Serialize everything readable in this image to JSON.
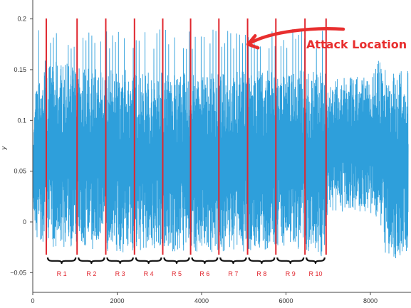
{
  "chart_data": {
    "type": "line",
    "xlabel": "",
    "ylabel": "y",
    "xlim": [
      0,
      8900
    ],
    "ylim": [
      -0.06,
      0.22
    ],
    "x_ticks": [
      0,
      2000,
      4000,
      6000,
      8000
    ],
    "x_tick_labels": [
      "0",
      "2000",
      "4000",
      "6000",
      "8000"
    ],
    "y_ticks": [
      -0.05,
      0,
      0.05,
      0.1,
      0.15,
      0.2
    ],
    "y_tick_labels": [
      "−0.05",
      "0",
      "0.05",
      "0.1",
      "0.15",
      "0.2"
    ],
    "grid": false,
    "series": [
      {
        "color": "#2e9fdb",
        "envelope": [
          {
            "x": 0,
            "low": 0.02,
            "high": 0.07
          },
          {
            "x": 60,
            "low": -0.02,
            "high": 0.13
          },
          {
            "x": 300,
            "low": -0.025,
            "high": 0.16
          },
          {
            "x": 1000,
            "low": -0.025,
            "high": 0.155
          },
          {
            "x": 2000,
            "low": -0.03,
            "high": 0.15
          },
          {
            "x": 3000,
            "low": -0.03,
            "high": 0.15
          },
          {
            "x": 4000,
            "low": -0.03,
            "high": 0.145
          },
          {
            "x": 5000,
            "low": -0.03,
            "high": 0.15
          },
          {
            "x": 6000,
            "low": -0.025,
            "high": 0.15
          },
          {
            "x": 6900,
            "low": -0.035,
            "high": 0.15
          },
          {
            "x": 7000,
            "low": 0.01,
            "high": 0.14
          },
          {
            "x": 8000,
            "low": 0.01,
            "high": 0.145
          },
          {
            "x": 8200,
            "low": -0.02,
            "high": 0.16
          },
          {
            "x": 8500,
            "low": -0.04,
            "high": 0.15
          },
          {
            "x": 8900,
            "low": -0.03,
            "high": 0.15
          }
        ],
        "spike_peak": 0.19,
        "spike_span": [
          100,
          7000
        ]
      }
    ],
    "region_boundaries": [
      320,
      1050,
      1730,
      2410,
      3080,
      3740,
      4410,
      5090,
      5760,
      6450,
      6950
    ],
    "region_labels": [
      "R 1",
      "R 2",
      "R 3",
      "R 4",
      "R 5",
      "R 6",
      "R 7",
      "R 8",
      "R 9",
      "R 10"
    ],
    "boundary_color": "#e0262e",
    "annotation": {
      "text": "Attack Location",
      "color": "#e82e2e",
      "points_to": {
        "x": 5100,
        "y": 0.175
      }
    }
  }
}
